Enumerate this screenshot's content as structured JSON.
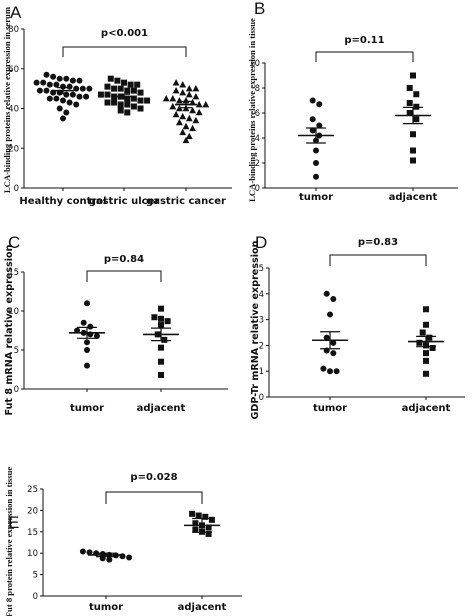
{
  "chart_data": [
    {
      "type": "scatter",
      "panel": "A",
      "ylabel": "LCA-binding proteins relative expression in serum",
      "ylim": [
        0,
        80
      ],
      "yticks": [
        0,
        20,
        40,
        60,
        80
      ],
      "categories": [
        "Healthy control",
        "gastric ulcer",
        "gastric cancer"
      ],
      "markers": [
        "circle",
        "square",
        "triangle"
      ],
      "significance": {
        "from": 0,
        "to": 2,
        "label": "p<0.001"
      },
      "means": [
        49,
        46,
        42
      ],
      "sem": [
        1.5,
        1.2,
        1.6
      ],
      "points": [
        [
          57,
          56,
          55,
          55,
          54,
          54,
          53,
          53,
          52,
          52,
          51,
          51,
          50,
          50,
          50,
          49,
          49,
          48,
          48,
          47,
          47,
          46,
          46,
          45,
          45,
          44,
          43,
          42,
          40,
          38,
          35
        ],
        [
          55,
          54,
          53,
          52,
          52,
          51,
          50,
          50,
          49,
          49,
          48,
          47,
          47,
          46,
          46,
          45,
          45,
          44,
          44,
          43,
          43,
          42,
          42,
          41,
          40,
          39,
          38
        ],
        [
          53,
          52,
          50,
          50,
          49,
          48,
          47,
          46,
          45,
          45,
          44,
          44,
          43,
          42,
          42,
          41,
          40,
          40,
          39,
          38,
          37,
          36,
          35,
          34,
          33,
          31,
          30,
          28,
          26,
          24
        ]
      ]
    },
    {
      "type": "scatter",
      "panel": "B",
      "ylabel": "LCA-binding proteins relative expression in tissue",
      "ylim": [
        0,
        10
      ],
      "yticks": [
        0,
        2,
        4,
        6,
        8,
        10
      ],
      "categories": [
        "tumor",
        "adjacent"
      ],
      "markers": [
        "circle",
        "square"
      ],
      "significance": {
        "from": 0,
        "to": 1,
        "label": "p=0.11"
      },
      "means": [
        4.2,
        5.8
      ],
      "sem": [
        0.6,
        0.65
      ],
      "points": [
        [
          7.0,
          6.7,
          5.5,
          5.0,
          4.6,
          4.2,
          3.8,
          3.0,
          2.0,
          0.9
        ],
        [
          9.0,
          8.0,
          7.5,
          6.8,
          6.5,
          6.0,
          5.5,
          4.3,
          3.0,
          2.2
        ]
      ]
    },
    {
      "type": "scatter",
      "panel": "C",
      "ylabel": "Fut 8 mRNA relative expression",
      "ylim": [
        0,
        15
      ],
      "yticks": [
        0,
        5,
        10,
        15
      ],
      "categories": [
        "tumor",
        "adjacent"
      ],
      "markers": [
        "circle",
        "square"
      ],
      "significance": {
        "from": 0,
        "to": 1,
        "label": "p=0.84"
      },
      "means": [
        7.2,
        7.0
      ],
      "sem": [
        0.7,
        0.8
      ],
      "points": [
        [
          11.0,
          8.5,
          8.0,
          7.5,
          7.2,
          7.0,
          6.8,
          6.0,
          5.0,
          3.0
        ],
        [
          10.3,
          9.2,
          9.0,
          8.7,
          8.2,
          7.0,
          6.3,
          5.3,
          3.5,
          1.8
        ]
      ]
    },
    {
      "type": "scatter",
      "panel": "D",
      "ylabel": "GDP-Tr mRNA relative expression",
      "ylim": [
        0,
        5
      ],
      "yticks": [
        0,
        1,
        2,
        3,
        4,
        5
      ],
      "categories": [
        "tumor",
        "adjacent"
      ],
      "markers": [
        "circle",
        "square"
      ],
      "significance": {
        "from": 0,
        "to": 1,
        "label": "p=0.83"
      },
      "means": [
        2.2,
        2.15
      ],
      "sem": [
        0.33,
        0.2
      ],
      "points": [
        [
          4.0,
          3.8,
          3.2,
          2.3,
          2.1,
          1.8,
          1.7,
          1.1,
          1.0,
          1.0
        ],
        [
          3.4,
          2.8,
          2.5,
          2.3,
          2.1,
          2.0,
          1.9,
          1.7,
          1.4,
          0.9
        ]
      ]
    },
    {
      "type": "scatter",
      "panel": "E",
      "ylabel": "Fut 8 protein relative expression in tissue",
      "ylim": [
        0,
        25
      ],
      "yticks": [
        0,
        5,
        10,
        15,
        20,
        25
      ],
      "categories": [
        "tumor",
        "adjacent"
      ],
      "markers": [
        "circle",
        "square"
      ],
      "significance": {
        "from": 0,
        "to": 1,
        "label": "p=0.028"
      },
      "means": [
        9.6,
        16.5
      ],
      "sem": [
        0.4,
        1.6
      ],
      "points": [
        [
          10.4,
          10.2,
          10.0,
          9.8,
          9.6,
          9.5,
          9.3,
          9.0,
          8.8,
          8.5
        ],
        [
          19.2,
          18.8,
          18.5,
          17.8,
          17.0,
          16.5,
          16.0,
          15.5,
          15.0,
          14.5
        ]
      ]
    }
  ]
}
